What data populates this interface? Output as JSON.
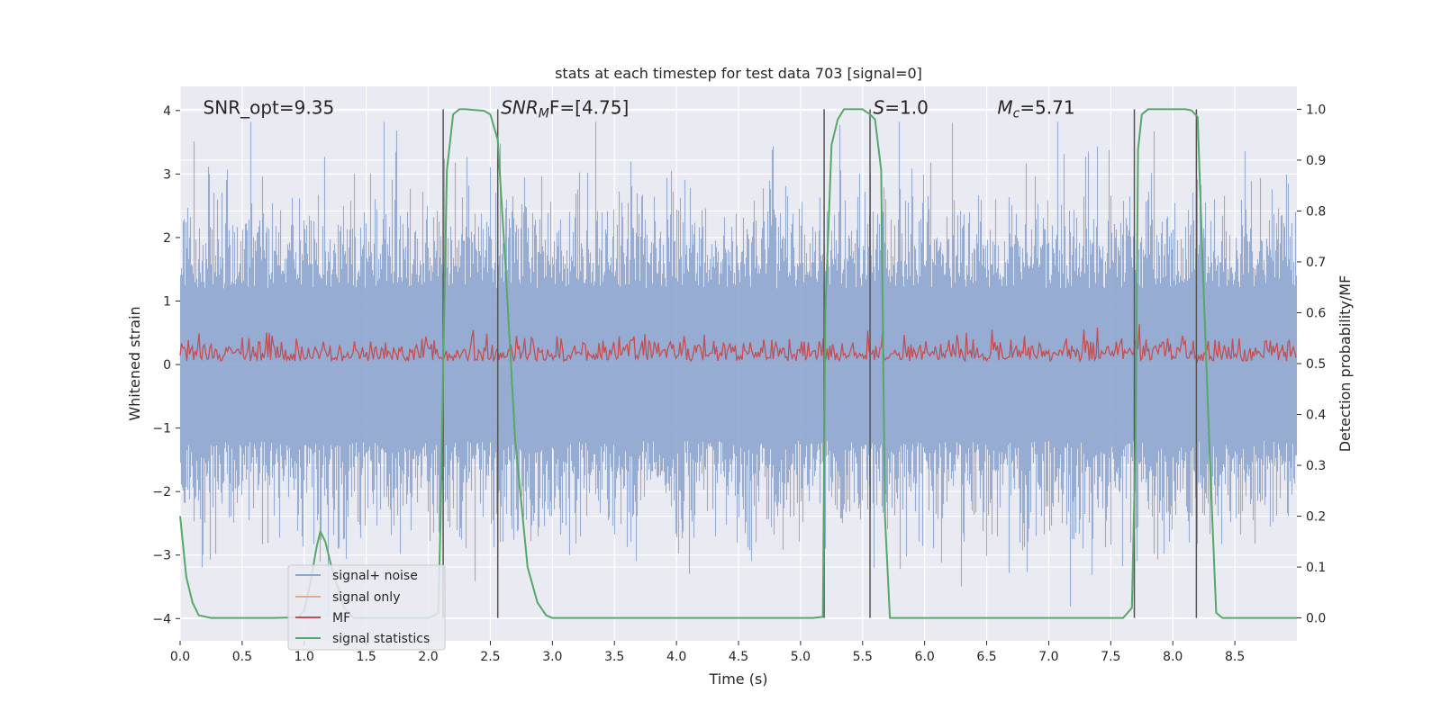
{
  "chart_data": {
    "type": "line",
    "title": "stats at each timestep for test data 703 [signal=0]",
    "xlabel": "Time (s)",
    "ylabel_left": "Whitened strain",
    "ylabel_right": "Detection probability/MF",
    "xlim": [
      0.0,
      9.0
    ],
    "ylim_left": [
      -4.35,
      4.38
    ],
    "ylim_right": [
      -0.045,
      1.045
    ],
    "x_ticks": [
      0.0,
      0.5,
      1.0,
      1.5,
      2.0,
      2.5,
      3.0,
      3.5,
      4.0,
      4.5,
      5.0,
      5.5,
      6.0,
      6.5,
      7.0,
      7.5,
      8.0,
      8.5
    ],
    "x_tick_labels": [
      "0.0",
      "0.5",
      "1.0",
      "1.5",
      "2.0",
      "2.5",
      "3.0",
      "3.5",
      "4.0",
      "4.5",
      "5.0",
      "5.5",
      "6.0",
      "6.5",
      "7.0",
      "7.5",
      "8.0",
      "8.5"
    ],
    "y_ticks_left": [
      -4,
      -3,
      -2,
      -1,
      0,
      1,
      2,
      3,
      4
    ],
    "y_tick_labels_left": [
      "−4",
      "−3",
      "−2",
      "−1",
      "0",
      "1",
      "2",
      "3",
      "4"
    ],
    "y_ticks_right": [
      0.0,
      0.1,
      0.2,
      0.3,
      0.4,
      0.5,
      0.6,
      0.7,
      0.8,
      0.9,
      1.0
    ],
    "y_tick_labels_right": [
      "0.0",
      "0.1",
      "0.2",
      "0.3",
      "0.4",
      "0.5",
      "0.6",
      "0.7",
      "0.8",
      "0.9",
      "1.0"
    ],
    "grid": true,
    "legend_position": "lower-left",
    "annotations": [
      {
        "text": "SNR_opt=9.35",
        "x": 0.2,
        "y": 4.05
      },
      {
        "text_main": "SNR",
        "text_sub": "M",
        "text_rest": "F=[4.75]",
        "x": 2.6,
        "y": 4.05
      },
      {
        "text_main": "S",
        "text_rest": "=1.0",
        "x": 5.6,
        "y": 4.05
      },
      {
        "text_main": "M",
        "text_sub": "c",
        "text_rest": "=5.71",
        "x": 6.6,
        "y": 4.05
      }
    ],
    "vertical_lines_x": [
      2.12,
      2.56,
      5.19,
      5.56,
      7.69,
      8.19
    ],
    "series": [
      {
        "name": "signal+ noise",
        "color": "#8ea5cf",
        "axis": "left",
        "noise_envelope": {
          "typical_max": 1.9,
          "typical_min": -1.9,
          "peak_max": 3.82,
          "peak_min": -3.98
        }
      },
      {
        "name": "signal only",
        "color": "#e8a98a",
        "axis": "left",
        "values": []
      },
      {
        "name": "MF",
        "color": "#c44e52",
        "axis": "right",
        "band": {
          "base": 0.5,
          "typical_max": 0.58,
          "peak": 0.63
        }
      },
      {
        "name": "signal statistics",
        "color": "#55a868",
        "axis": "right",
        "x": [
          0.0,
          0.05,
          0.1,
          0.15,
          0.25,
          0.5,
          0.75,
          0.95,
          1.0,
          1.05,
          1.1,
          1.13,
          1.17,
          1.22,
          1.27,
          1.32,
          1.4,
          1.6,
          1.9,
          2.0,
          2.05,
          2.08,
          2.1,
          2.12,
          2.15,
          2.2,
          2.25,
          2.3,
          2.45,
          2.5,
          2.56,
          2.62,
          2.7,
          2.8,
          2.88,
          2.95,
          3.0,
          3.5,
          4.0,
          4.5,
          5.0,
          5.1,
          5.18,
          5.2,
          5.25,
          5.3,
          5.35,
          5.5,
          5.56,
          5.6,
          5.65,
          5.68,
          5.72,
          6.0,
          7.0,
          7.6,
          7.67,
          7.7,
          7.72,
          7.75,
          7.8,
          8.1,
          8.15,
          8.2,
          8.24,
          8.3,
          8.35,
          8.4,
          8.5,
          9.0
        ],
        "values": [
          0.2,
          0.08,
          0.03,
          0.005,
          0.0,
          0.0,
          0.0,
          0.001,
          0.015,
          0.07,
          0.14,
          0.17,
          0.15,
          0.1,
          0.06,
          0.02,
          0.0,
          0.0,
          0.0,
          0.0,
          0.005,
          0.01,
          0.2,
          0.5,
          0.88,
          0.99,
          1.0,
          1.0,
          0.997,
          0.99,
          0.94,
          0.7,
          0.35,
          0.1,
          0.03,
          0.005,
          0.0,
          0.0,
          0.0,
          0.0,
          0.0,
          0.0,
          0.002,
          0.6,
          0.93,
          0.98,
          1.0,
          1.0,
          0.99,
          0.98,
          0.88,
          0.2,
          0.0,
          0.0,
          0.0,
          0.0,
          0.02,
          0.35,
          0.92,
          0.99,
          1.0,
          1.0,
          0.998,
          0.985,
          0.7,
          0.3,
          0.01,
          0.0,
          0.0,
          0.0
        ]
      }
    ]
  }
}
